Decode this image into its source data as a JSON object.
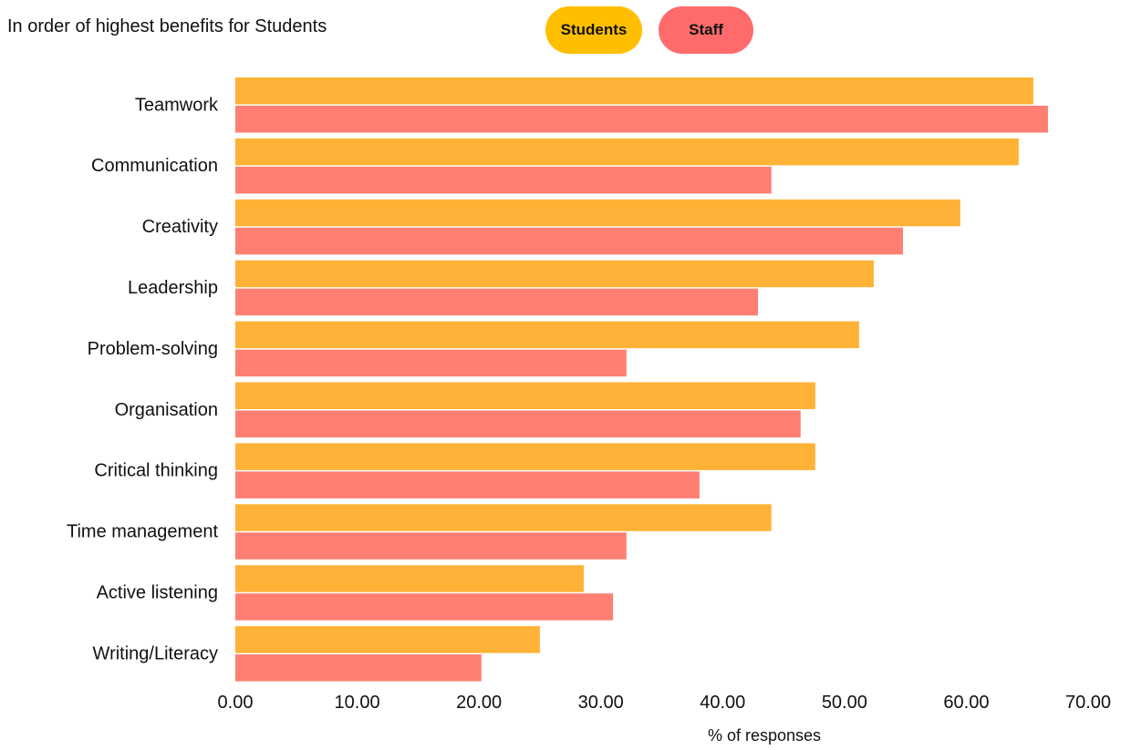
{
  "subtitle": "In order of highest benefits for Students",
  "legend": [
    {
      "label": "Students",
      "color": "#FFBF00"
    },
    {
      "label": "Staff",
      "color": "#FF6B6B"
    }
  ],
  "chart_data": {
    "type": "bar",
    "orientation": "horizontal",
    "title": "",
    "subtitle": "In order of highest benefits for Students",
    "xlabel": "% of responses",
    "ylabel": "",
    "xlim": [
      0,
      70
    ],
    "x_ticks": [
      "0.00",
      "10.00",
      "20.00",
      "30.00",
      "40.00",
      "50.00",
      "60.00",
      "70.00"
    ],
    "grid": false,
    "legend_position": "top",
    "categories": [
      "Teamwork",
      "Communication",
      "Creativity",
      "Leadership",
      "Problem-solving",
      "Organisation",
      "Critical thinking",
      "Time management",
      "Active listening",
      "Writing/Literacy"
    ],
    "series": [
      {
        "name": "Students",
        "color": "#FFB236",
        "values": [
          65.5,
          64.3,
          59.5,
          52.4,
          51.2,
          47.6,
          47.6,
          44.0,
          28.6,
          25.0
        ]
      },
      {
        "name": "Staff",
        "color": "#FF7F72",
        "values": [
          66.7,
          44.0,
          54.8,
          42.9,
          32.1,
          46.4,
          38.1,
          32.1,
          31.0,
          20.2
        ]
      }
    ]
  }
}
